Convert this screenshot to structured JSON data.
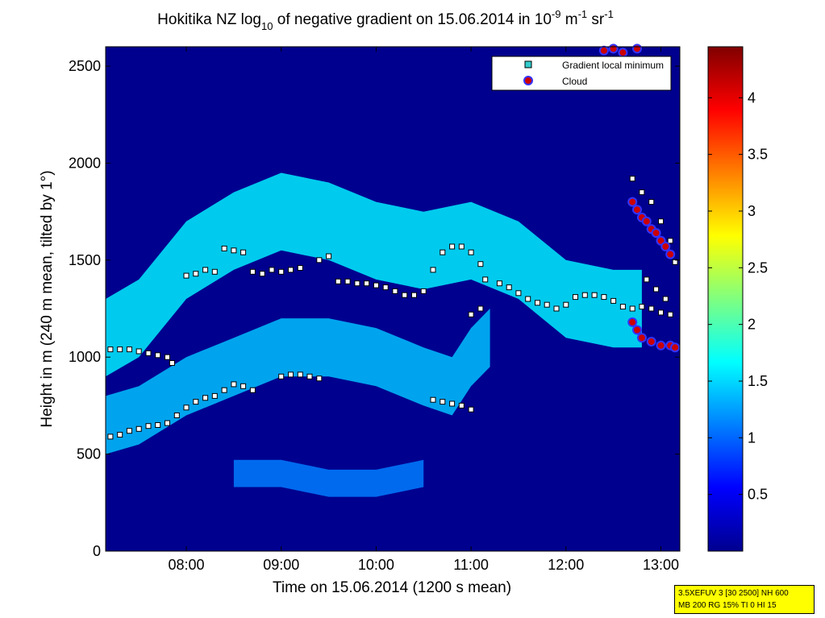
{
  "chart_data": {
    "type": "heatmap",
    "title_parts": {
      "pre": "Hokitika NZ log",
      "sub": "10",
      "mid": " of negative gradient on 15.06.2014 in 10",
      "sup1": "-9",
      "m_unit": " m",
      "sup2": "-1",
      "sr_unit": " sr",
      "sup3": "-1"
    },
    "xlabel": "Time on 15.06.2014 (1200 s mean)",
    "ylabel": "Height in m (240 m mean, tilted by 1°)",
    "xlim_hours": [
      7.15,
      13.2
    ],
    "ylim": [
      0,
      2600
    ],
    "x_ticks": [
      {
        "t": 8,
        "label": "08:00"
      },
      {
        "t": 9,
        "label": "09:00"
      },
      {
        "t": 10,
        "label": "10:00"
      },
      {
        "t": 11,
        "label": "11:00"
      },
      {
        "t": 12,
        "label": "12:00"
      },
      {
        "t": 13,
        "label": "13:00"
      }
    ],
    "y_ticks": [
      {
        "v": 0,
        "label": "0"
      },
      {
        "v": 500,
        "label": "500"
      },
      {
        "v": 1000,
        "label": "1000"
      },
      {
        "v": 1500,
        "label": "1500"
      },
      {
        "v": 2000,
        "label": "2000"
      },
      {
        "v": 2500,
        "label": "2500"
      }
    ],
    "colorbar": {
      "range": [
        0,
        4.45
      ],
      "ticks": [
        {
          "v": 0.5,
          "label": "0.5"
        },
        {
          "v": 1,
          "label": "1"
        },
        {
          "v": 1.5,
          "label": "1.5"
        },
        {
          "v": 2,
          "label": "2"
        },
        {
          "v": 2.5,
          "label": "2.5"
        },
        {
          "v": 3,
          "label": "3"
        },
        {
          "v": 3.5,
          "label": "3.5"
        },
        {
          "v": 4,
          "label": "4"
        }
      ],
      "colormap": "jet"
    },
    "legend": {
      "placement": "top-right",
      "entries": [
        {
          "label": "Gradient local minimum",
          "marker": "square",
          "color": "#33cccc"
        },
        {
          "label": "Cloud",
          "marker": "circle",
          "color": "#cc0000",
          "edge": "#3333ff"
        }
      ]
    },
    "background_value": 0.1,
    "bands": [
      {
        "name": "top",
        "value": 1.6,
        "points": [
          [
            7.15,
            1100
          ],
          [
            7.5,
            1200
          ],
          [
            8.0,
            1500
          ],
          [
            8.5,
            1650
          ],
          [
            9.0,
            1750
          ],
          [
            9.5,
            1700
          ],
          [
            10.0,
            1600
          ],
          [
            10.5,
            1550
          ],
          [
            11.0,
            1600
          ],
          [
            11.5,
            1500
          ],
          [
            12.0,
            1300
          ],
          [
            12.5,
            1250
          ],
          [
            12.8,
            1250
          ]
        ],
        "half_width": 200
      },
      {
        "name": "mid",
        "value": 1.4,
        "points": [
          [
            7.15,
            650
          ],
          [
            7.5,
            700
          ],
          [
            8.0,
            850
          ],
          [
            8.5,
            950
          ],
          [
            9.0,
            1050
          ],
          [
            9.5,
            1050
          ],
          [
            10.0,
            1000
          ],
          [
            10.5,
            900
          ],
          [
            10.8,
            850
          ],
          [
            11.0,
            1000
          ],
          [
            11.2,
            1100
          ]
        ],
        "half_width": 150
      },
      {
        "name": "low",
        "value": 1.1,
        "points": [
          [
            8.5,
            400
          ],
          [
            9.0,
            400
          ],
          [
            9.5,
            350
          ],
          [
            10.0,
            350
          ],
          [
            10.5,
            400
          ]
        ],
        "half_width": 70
      }
    ],
    "series": [
      {
        "name": "Gradient local minimum",
        "marker": "square",
        "points": [
          [
            7.2,
            590
          ],
          [
            7.3,
            600
          ],
          [
            7.4,
            620
          ],
          [
            7.5,
            630
          ],
          [
            7.6,
            645
          ],
          [
            7.7,
            650
          ],
          [
            7.8,
            660
          ],
          [
            7.9,
            700
          ],
          [
            8.0,
            740
          ],
          [
            8.1,
            770
          ],
          [
            8.2,
            790
          ],
          [
            8.3,
            800
          ],
          [
            8.4,
            830
          ],
          [
            8.5,
            860
          ],
          [
            8.6,
            850
          ],
          [
            8.7,
            830
          ],
          [
            7.2,
            1040
          ],
          [
            7.3,
            1040
          ],
          [
            7.4,
            1040
          ],
          [
            7.5,
            1030
          ],
          [
            7.6,
            1020
          ],
          [
            7.7,
            1010
          ],
          [
            7.8,
            1000
          ],
          [
            7.85,
            970
          ],
          [
            8.0,
            1420
          ],
          [
            8.1,
            1430
          ],
          [
            8.2,
            1450
          ],
          [
            8.3,
            1440
          ],
          [
            8.4,
            1560
          ],
          [
            8.5,
            1550
          ],
          [
            8.6,
            1540
          ],
          [
            8.7,
            1440
          ],
          [
            8.8,
            1430
          ],
          [
            8.9,
            1450
          ],
          [
            9.0,
            1440
          ],
          [
            9.1,
            1450
          ],
          [
            9.2,
            1460
          ],
          [
            9.0,
            900
          ],
          [
            9.1,
            910
          ],
          [
            9.2,
            910
          ],
          [
            9.3,
            900
          ],
          [
            9.4,
            890
          ],
          [
            9.4,
            1500
          ],
          [
            9.5,
            1520
          ],
          [
            9.6,
            1390
          ],
          [
            9.7,
            1390
          ],
          [
            9.8,
            1380
          ],
          [
            9.9,
            1380
          ],
          [
            10.0,
            1370
          ],
          [
            10.1,
            1360
          ],
          [
            10.2,
            1340
          ],
          [
            10.3,
            1320
          ],
          [
            10.4,
            1320
          ],
          [
            10.5,
            1340
          ],
          [
            10.6,
            780
          ],
          [
            10.7,
            770
          ],
          [
            10.8,
            760
          ],
          [
            10.9,
            750
          ],
          [
            11.0,
            730
          ],
          [
            10.6,
            1450
          ],
          [
            10.7,
            1540
          ],
          [
            10.8,
            1570
          ],
          [
            10.9,
            1570
          ],
          [
            11.0,
            1540
          ],
          [
            11.1,
            1480
          ],
          [
            11.0,
            1220
          ],
          [
            11.1,
            1250
          ],
          [
            11.15,
            1400
          ],
          [
            11.3,
            1380
          ],
          [
            11.4,
            1360
          ],
          [
            11.5,
            1330
          ],
          [
            11.6,
            1300
          ],
          [
            11.7,
            1280
          ],
          [
            11.8,
            1270
          ],
          [
            11.9,
            1250
          ],
          [
            12.0,
            1270
          ],
          [
            12.1,
            1310
          ],
          [
            12.2,
            1320
          ],
          [
            12.3,
            1320
          ],
          [
            12.4,
            1310
          ],
          [
            12.5,
            1290
          ],
          [
            12.6,
            1260
          ],
          [
            12.7,
            1250
          ],
          [
            12.8,
            1260
          ],
          [
            12.9,
            1250
          ],
          [
            13.0,
            1230
          ],
          [
            13.1,
            1220
          ],
          [
            12.7,
            1920
          ],
          [
            12.8,
            1850
          ],
          [
            12.9,
            1800
          ],
          [
            13.0,
            1700
          ],
          [
            13.1,
            1600
          ],
          [
            13.15,
            1490
          ],
          [
            12.85,
            1400
          ],
          [
            12.95,
            1350
          ],
          [
            13.05,
            1300
          ]
        ]
      },
      {
        "name": "Cloud",
        "marker": "circle",
        "points": [
          [
            12.7,
            1800
          ],
          [
            12.75,
            1760
          ],
          [
            12.8,
            1720
          ],
          [
            12.85,
            1700
          ],
          [
            12.9,
            1660
          ],
          [
            12.95,
            1640
          ],
          [
            13.0,
            1600
          ],
          [
            13.05,
            1570
          ],
          [
            13.1,
            1530
          ],
          [
            12.7,
            1180
          ],
          [
            12.75,
            1140
          ],
          [
            12.8,
            1100
          ],
          [
            12.9,
            1080
          ],
          [
            13.0,
            1060
          ],
          [
            13.1,
            1060
          ],
          [
            13.15,
            1050
          ],
          [
            12.4,
            2580
          ],
          [
            12.5,
            2590
          ],
          [
            12.6,
            2570
          ],
          [
            12.75,
            2590
          ]
        ]
      }
    ]
  },
  "info_box": {
    "line1": "3.5XEFUV 3 [30 2500] NH 600",
    "line2": "MB 200 RG 15% TI 0 HI 15"
  },
  "colors": {
    "legend_min_marker": "#33cccc",
    "cloud_marker": "#cc0000",
    "cloud_edge": "#3333ff",
    "info_box_bg": "#ffff00"
  }
}
